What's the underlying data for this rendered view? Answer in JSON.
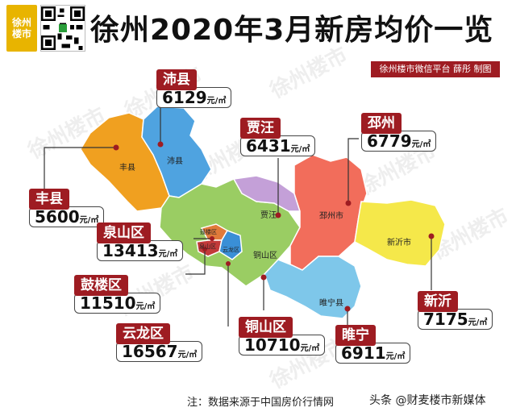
{
  "brand": {
    "logo_line1": "徐州",
    "logo_line2": "楼市"
  },
  "title": "徐州2020年3月新房均价一览",
  "credit": "徐州楼市微信平台 薛彤 制图",
  "watermark": "徐州楼市",
  "unit": "元/㎡",
  "map_labels": {
    "fengxian": "丰县",
    "peixian": "沛县",
    "jiawang": "贾汪",
    "pizhou": "邳州市",
    "xinyi": "新沂市",
    "gulou": "鼓楼区",
    "quanshan": "泉山区",
    "yunlong": "云龙区",
    "tongshan": "铜山区",
    "suining": "睢宁县"
  },
  "regions": {
    "peixian": {
      "name": "沛县",
      "price": "6129"
    },
    "jiawang": {
      "name": "贾汪",
      "price": "6431"
    },
    "pizhou": {
      "name": "邳州",
      "price": "6779"
    },
    "fengxian": {
      "name": "丰县",
      "price": "5600"
    },
    "quanshan": {
      "name": "泉山区",
      "price": "13413"
    },
    "gulou": {
      "name": "鼓楼区",
      "price": "11510"
    },
    "xinyi": {
      "name": "新沂",
      "price": "7175"
    },
    "yunlong": {
      "name": "云龙区",
      "price": "16567"
    },
    "tongshan": {
      "name": "铜山区",
      "price": "10710"
    },
    "suining": {
      "name": "睢宁",
      "price": "6911"
    }
  },
  "colors": {
    "fengxian": "#f0a020",
    "peixian": "#4fa3e0",
    "tongshan": "#9acd63",
    "jiawang": "#c4a0d8",
    "pizhou": "#f26d5b",
    "xinyi": "#f5e84a",
    "suining": "#7ec7ea",
    "gulou": "#e07a3a",
    "quanshan": "#c23a3a",
    "yunlong": "#3a8fd6",
    "accent": "#9e1c22"
  },
  "footer": {
    "note": "注：数据来源于中国房价行情网",
    "source": "头条 @财麦楼市新媒体"
  }
}
